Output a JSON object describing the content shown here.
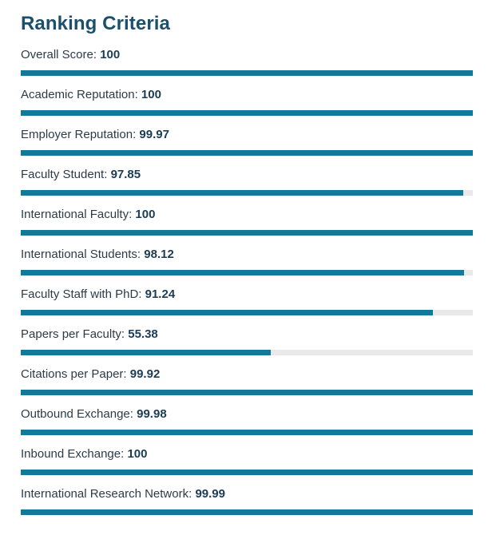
{
  "section": {
    "title": "Ranking Criteria"
  },
  "criteria": [
    {
      "label": "Overall Score:",
      "value_text": "100",
      "value": 100
    },
    {
      "label": "Academic Reputation:",
      "value_text": "100",
      "value": 100
    },
    {
      "label": "Employer Reputation:",
      "value_text": "99.97",
      "value": 99.97
    },
    {
      "label": "Faculty Student:",
      "value_text": "97.85",
      "value": 97.85
    },
    {
      "label": "International Faculty:",
      "value_text": "100",
      "value": 100
    },
    {
      "label": "International Students:",
      "value_text": "98.12",
      "value": 98.12
    },
    {
      "label": "Faculty Staff with PhD:",
      "value_text": "91.24",
      "value": 91.24
    },
    {
      "label": "Papers per Faculty:",
      "value_text": "55.38",
      "value": 55.38
    },
    {
      "label": "Citations per Paper:",
      "value_text": "99.92",
      "value": 99.92
    },
    {
      "label": "Outbound Exchange:",
      "value_text": "99.98",
      "value": 99.98
    },
    {
      "label": "Inbound Exchange:",
      "value_text": "100",
      "value": 100
    },
    {
      "label": "International Research Network:",
      "value_text": "99.99",
      "value": 99.99
    }
  ],
  "scale_max": 100,
  "colors": {
    "bar_fill": "#127a99",
    "bar_track": "#e9e9e9",
    "title": "#1b4f6b"
  }
}
